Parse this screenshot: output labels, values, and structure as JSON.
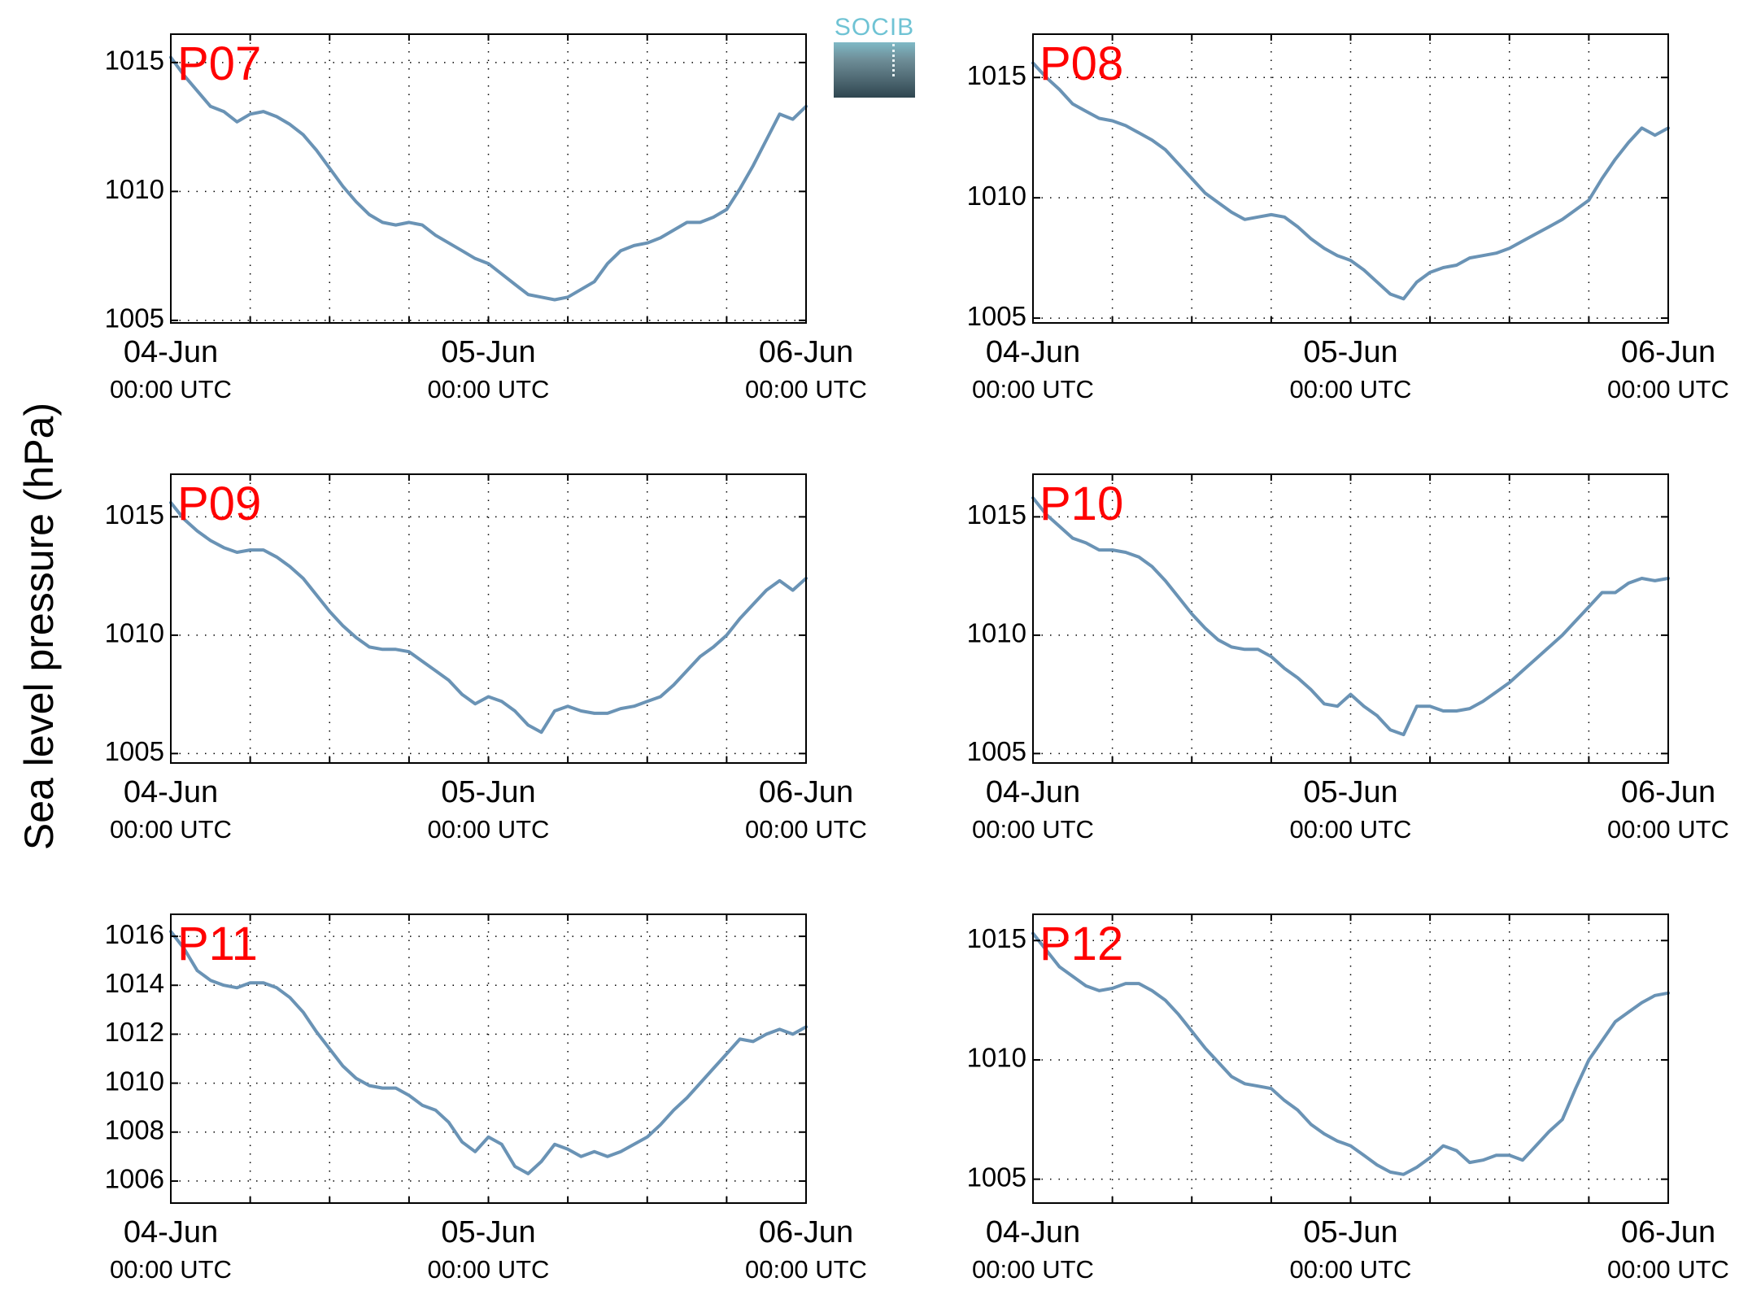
{
  "ylabel": "Sea level pressure (hPa)",
  "logo": {
    "text": "SOCIB"
  },
  "colors": {
    "line": "#6a93b5",
    "station_label": "#ff0000",
    "axes": "#000000"
  },
  "x_ticks": [
    {
      "day": "04-Jun",
      "time": "00:00 UTC",
      "hours": 0
    },
    {
      "day": "05-Jun",
      "time": "00:00 UTC",
      "hours": 24
    },
    {
      "day": "06-Jun",
      "time": "00:00 UTC",
      "hours": 48
    }
  ],
  "chart_data": [
    {
      "type": "line",
      "station": "P07",
      "xlim": [
        0,
        48
      ],
      "ylim": [
        1004.9,
        1016.1
      ],
      "yticks": [
        1005,
        1010,
        1015
      ],
      "grid": true,
      "x": [
        0,
        1,
        2,
        3,
        4,
        5,
        6,
        7,
        8,
        9,
        10,
        11,
        12,
        13,
        14,
        15,
        16,
        17,
        18,
        19,
        20,
        21,
        22,
        23,
        24,
        25,
        26,
        27,
        28,
        29,
        30,
        31,
        32,
        33,
        34,
        35,
        36,
        37,
        38,
        39,
        40,
        41,
        42,
        43,
        44,
        45,
        46,
        47,
        48
      ],
      "y": [
        1015.2,
        1014.5,
        1013.9,
        1013.3,
        1013.1,
        1012.7,
        1013.0,
        1013.1,
        1012.9,
        1012.6,
        1012.2,
        1011.6,
        1010.9,
        1010.2,
        1009.6,
        1009.1,
        1008.8,
        1008.7,
        1008.8,
        1008.7,
        1008.3,
        1008.0,
        1007.7,
        1007.4,
        1007.2,
        1006.8,
        1006.4,
        1006.0,
        1005.9,
        1005.8,
        1005.9,
        1006.2,
        1006.5,
        1007.2,
        1007.7,
        1007.9,
        1008.0,
        1008.2,
        1008.5,
        1008.8,
        1008.8,
        1009.0,
        1009.3,
        1010.1,
        1011.0,
        1012.0,
        1013.0,
        1012.8,
        1013.3
      ]
    },
    {
      "type": "line",
      "station": "P08",
      "xlim": [
        0,
        48
      ],
      "ylim": [
        1004.8,
        1016.8
      ],
      "yticks": [
        1005,
        1010,
        1015
      ],
      "grid": true,
      "x": [
        0,
        1,
        2,
        3,
        4,
        5,
        6,
        7,
        8,
        9,
        10,
        11,
        12,
        13,
        14,
        15,
        16,
        17,
        18,
        19,
        20,
        21,
        22,
        23,
        24,
        25,
        26,
        27,
        28,
        29,
        30,
        31,
        32,
        33,
        34,
        35,
        36,
        37,
        38,
        39,
        40,
        41,
        42,
        43,
        44,
        45,
        46,
        47,
        48
      ],
      "y": [
        1015.6,
        1015.0,
        1014.5,
        1013.9,
        1013.6,
        1013.3,
        1013.2,
        1013.0,
        1012.7,
        1012.4,
        1012.0,
        1011.4,
        1010.8,
        1010.2,
        1009.8,
        1009.4,
        1009.1,
        1009.2,
        1009.3,
        1009.2,
        1008.8,
        1008.3,
        1007.9,
        1007.6,
        1007.4,
        1007.0,
        1006.5,
        1006.0,
        1005.8,
        1006.5,
        1006.9,
        1007.1,
        1007.2,
        1007.5,
        1007.6,
        1007.7,
        1007.9,
        1008.2,
        1008.5,
        1008.8,
        1009.1,
        1009.5,
        1009.9,
        1010.8,
        1011.6,
        1012.3,
        1012.9,
        1012.6,
        1012.9
      ]
    },
    {
      "type": "line",
      "station": "P09",
      "xlim": [
        0,
        48
      ],
      "ylim": [
        1004.6,
        1016.8
      ],
      "yticks": [
        1005,
        1010,
        1015
      ],
      "grid": true,
      "x": [
        0,
        1,
        2,
        3,
        4,
        5,
        6,
        7,
        8,
        9,
        10,
        11,
        12,
        13,
        14,
        15,
        16,
        17,
        18,
        19,
        20,
        21,
        22,
        23,
        24,
        25,
        26,
        27,
        28,
        29,
        30,
        31,
        32,
        33,
        34,
        35,
        36,
        37,
        38,
        39,
        40,
        41,
        42,
        43,
        44,
        45,
        46,
        47,
        48
      ],
      "y": [
        1015.6,
        1014.9,
        1014.4,
        1014.0,
        1013.7,
        1013.5,
        1013.6,
        1013.6,
        1013.3,
        1012.9,
        1012.4,
        1011.7,
        1011.0,
        1010.4,
        1009.9,
        1009.5,
        1009.4,
        1009.4,
        1009.3,
        1008.9,
        1008.5,
        1008.1,
        1007.5,
        1007.1,
        1007.4,
        1007.2,
        1006.8,
        1006.2,
        1005.9,
        1006.8,
        1007.0,
        1006.8,
        1006.7,
        1006.7,
        1006.9,
        1007.0,
        1007.2,
        1007.4,
        1007.9,
        1008.5,
        1009.1,
        1009.5,
        1010.0,
        1010.7,
        1011.3,
        1011.9,
        1012.3,
        1011.9,
        1012.4
      ]
    },
    {
      "type": "line",
      "station": "P10",
      "xlim": [
        0,
        48
      ],
      "ylim": [
        1004.6,
        1016.8
      ],
      "yticks": [
        1005,
        1010,
        1015
      ],
      "grid": true,
      "x": [
        0,
        1,
        2,
        3,
        4,
        5,
        6,
        7,
        8,
        9,
        10,
        11,
        12,
        13,
        14,
        15,
        16,
        17,
        18,
        19,
        20,
        21,
        22,
        23,
        24,
        25,
        26,
        27,
        28,
        29,
        30,
        31,
        32,
        33,
        34,
        35,
        36,
        37,
        38,
        39,
        40,
        41,
        42,
        43,
        44,
        45,
        46,
        47,
        48
      ],
      "y": [
        1015.8,
        1015.1,
        1014.6,
        1014.1,
        1013.9,
        1013.6,
        1013.6,
        1013.5,
        1013.3,
        1012.9,
        1012.3,
        1011.6,
        1010.9,
        1010.3,
        1009.8,
        1009.5,
        1009.4,
        1009.4,
        1009.1,
        1008.6,
        1008.2,
        1007.7,
        1007.1,
        1007.0,
        1007.5,
        1007.0,
        1006.6,
        1006.0,
        1005.8,
        1007.0,
        1007.0,
        1006.8,
        1006.8,
        1006.9,
        1007.2,
        1007.6,
        1008.0,
        1008.5,
        1009.0,
        1009.5,
        1010.0,
        1010.6,
        1011.2,
        1011.8,
        1011.8,
        1012.2,
        1012.4,
        1012.3,
        1012.4
      ]
    },
    {
      "type": "line",
      "station": "P11",
      "xlim": [
        0,
        48
      ],
      "ylim": [
        1005.1,
        1016.9
      ],
      "yticks": [
        1006,
        1008,
        1010,
        1012,
        1014,
        1016
      ],
      "grid": true,
      "x": [
        0,
        1,
        2,
        3,
        4,
        5,
        6,
        7,
        8,
        9,
        10,
        11,
        12,
        13,
        14,
        15,
        16,
        17,
        18,
        19,
        20,
        21,
        22,
        23,
        24,
        25,
        26,
        27,
        28,
        29,
        30,
        31,
        32,
        33,
        34,
        35,
        36,
        37,
        38,
        39,
        40,
        41,
        42,
        43,
        44,
        45,
        46,
        47,
        48
      ],
      "y": [
        1016.2,
        1015.5,
        1014.6,
        1014.2,
        1014.0,
        1013.9,
        1014.1,
        1014.1,
        1013.9,
        1013.5,
        1012.9,
        1012.1,
        1011.4,
        1010.7,
        1010.2,
        1009.9,
        1009.8,
        1009.8,
        1009.5,
        1009.1,
        1008.9,
        1008.4,
        1007.6,
        1007.2,
        1007.8,
        1007.5,
        1006.6,
        1006.3,
        1006.8,
        1007.5,
        1007.3,
        1007.0,
        1007.2,
        1007.0,
        1007.2,
        1007.5,
        1007.8,
        1008.3,
        1008.9,
        1009.4,
        1010.0,
        1010.6,
        1011.2,
        1011.8,
        1011.7,
        1012.0,
        1012.2,
        1012.0,
        1012.3
      ]
    },
    {
      "type": "line",
      "station": "P12",
      "xlim": [
        0,
        48
      ],
      "ylim": [
        1004.0,
        1016.1
      ],
      "yticks": [
        1005,
        1010,
        1015
      ],
      "grid": true,
      "x": [
        0,
        1,
        2,
        3,
        4,
        5,
        6,
        7,
        8,
        9,
        10,
        11,
        12,
        13,
        14,
        15,
        16,
        17,
        18,
        19,
        20,
        21,
        22,
        23,
        24,
        25,
        26,
        27,
        28,
        29,
        30,
        31,
        32,
        33,
        34,
        35,
        36,
        37,
        38,
        39,
        40,
        41,
        42,
        43,
        44,
        45,
        46,
        47,
        48
      ],
      "y": [
        1015.3,
        1014.6,
        1013.9,
        1013.5,
        1013.1,
        1012.9,
        1013.0,
        1013.2,
        1013.2,
        1012.9,
        1012.5,
        1011.9,
        1011.2,
        1010.5,
        1009.9,
        1009.3,
        1009.0,
        1008.9,
        1008.8,
        1008.3,
        1007.9,
        1007.3,
        1006.9,
        1006.6,
        1006.4,
        1006.0,
        1005.6,
        1005.3,
        1005.2,
        1005.5,
        1005.9,
        1006.4,
        1006.2,
        1005.7,
        1005.8,
        1006.0,
        1006.0,
        1005.8,
        1006.4,
        1007.0,
        1007.5,
        1008.8,
        1010.0,
        1010.8,
        1011.6,
        1012.0,
        1012.4,
        1012.7,
        1012.8
      ]
    }
  ]
}
